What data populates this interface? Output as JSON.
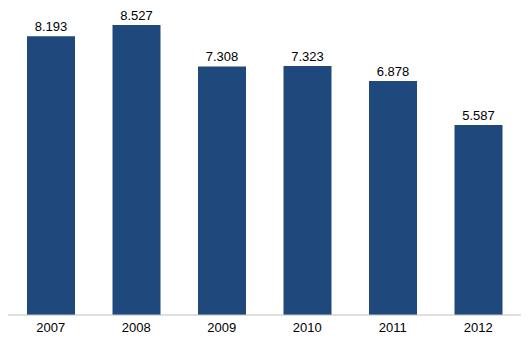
{
  "chart_data": {
    "type": "bar",
    "categories": [
      "2007",
      "2008",
      "2009",
      "2010",
      "2011",
      "2012"
    ],
    "values": [
      8.193,
      8.527,
      7.308,
      7.323,
      6.878,
      5.587
    ],
    "color": "#1f497d",
    "data_labels": true,
    "tick_labels": "x",
    "grid": false
  }
}
